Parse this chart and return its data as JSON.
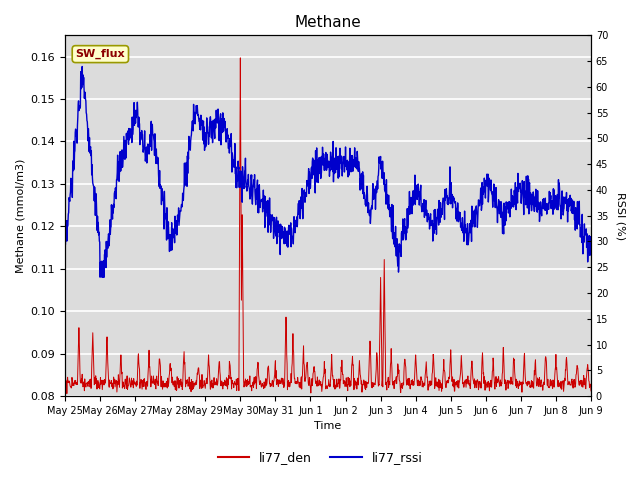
{
  "title": "Methane",
  "xlabel": "Time",
  "ylabel_left": "Methane (mmol/m3)",
  "ylabel_right": "RSSI (%)",
  "ylim_left": [
    0.08,
    0.165
  ],
  "ylim_right": [
    0,
    70
  ],
  "yticks_left": [
    0.08,
    0.09,
    0.1,
    0.11,
    0.12,
    0.13,
    0.14,
    0.15,
    0.16
  ],
  "yticks_right": [
    0,
    5,
    10,
    15,
    20,
    25,
    30,
    35,
    40,
    45,
    50,
    55,
    60,
    65,
    70
  ],
  "color_den": "#cc0000",
  "color_rssi": "#0000cc",
  "legend_label_den": "li77_den",
  "legend_label_rssi": "li77_rssi",
  "annotation_label": "SW_flux",
  "bg_color": "#dcdcdc",
  "grid_color": "white"
}
